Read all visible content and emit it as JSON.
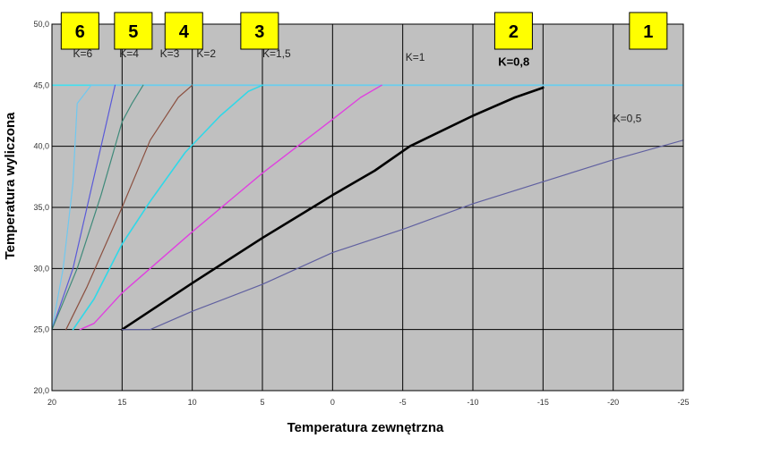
{
  "chart_data": {
    "type": "line",
    "xlabel": "Temperatura zewnętrzna",
    "ylabel": "Temperatura wyliczona",
    "xlim": [
      20,
      -25
    ],
    "ylim": [
      20,
      50
    ],
    "x_ticks": [
      20,
      15,
      10,
      5,
      0,
      -5,
      -10,
      -15,
      -20,
      -25
    ],
    "y_ticks": [
      20,
      25,
      30,
      35,
      40,
      45,
      50
    ],
    "x_tick_labels": [
      "20",
      "15",
      "10",
      "5",
      "0",
      "-5",
      "-10",
      "-15",
      "-20",
      "-25"
    ],
    "y_tick_labels": [
      "20,0",
      "25,0",
      "30,0",
      "35,0",
      "40,0",
      "45,0",
      "50,0"
    ],
    "grid": true,
    "plot_background": "#c0c0c0",
    "reference_line": {
      "y": 45,
      "color": "#40e0f0"
    },
    "series": [
      {
        "name": "K=6",
        "color": "#70c8ef",
        "width": 1.2,
        "bold": false,
        "points": [
          [
            20,
            25
          ],
          [
            19.2,
            30
          ],
          [
            18.5,
            37
          ],
          [
            18.2,
            43.5
          ],
          [
            17.2,
            45
          ],
          [
            -25,
            45
          ]
        ]
      },
      {
        "name": "K=4",
        "color": "#5a5ad8",
        "width": 1.2,
        "bold": false,
        "points": [
          [
            20,
            25
          ],
          [
            18.5,
            30
          ],
          [
            17.3,
            36
          ],
          [
            16.3,
            41
          ],
          [
            15.5,
            45
          ]
        ]
      },
      {
        "name": "K=3",
        "color": "#3f8a7a",
        "width": 1.2,
        "bold": false,
        "points": [
          [
            20,
            25
          ],
          [
            18.2,
            30
          ],
          [
            16.5,
            36
          ],
          [
            15,
            42
          ],
          [
            14.3,
            43.5
          ],
          [
            13.5,
            45
          ]
        ]
      },
      {
        "name": "K=2",
        "color": "#8b5040",
        "width": 1.2,
        "bold": false,
        "points": [
          [
            19,
            25
          ],
          [
            17.5,
            28.5
          ],
          [
            15,
            35
          ],
          [
            13,
            40.5
          ],
          [
            11,
            44
          ],
          [
            10,
            45
          ]
        ]
      },
      {
        "name": "K=1,5",
        "color": "#30d8e8",
        "width": 1.6,
        "bold": false,
        "points": [
          [
            18.5,
            25
          ],
          [
            17,
            27.5
          ],
          [
            15,
            32
          ],
          [
            13,
            35.5
          ],
          [
            10.5,
            39.5
          ],
          [
            8,
            42.5
          ],
          [
            6,
            44.5
          ],
          [
            5,
            45
          ]
        ]
      },
      {
        "name": "K=1",
        "color": "#e040e0",
        "width": 1.4,
        "bold": false,
        "points": [
          [
            18,
            25
          ],
          [
            17,
            25.5
          ],
          [
            15,
            28
          ],
          [
            10,
            33
          ],
          [
            5,
            37.8
          ],
          [
            0,
            42.2
          ],
          [
            -2,
            44
          ],
          [
            -3.5,
            45
          ]
        ]
      },
      {
        "name": "K=0,8",
        "color": "#000000",
        "width": 2.6,
        "bold": true,
        "points": [
          [
            15,
            25
          ],
          [
            10,
            28.8
          ],
          [
            5,
            32.5
          ],
          [
            2,
            34.6
          ],
          [
            0,
            36
          ],
          [
            -3,
            38
          ],
          [
            -5.5,
            40
          ],
          [
            -10,
            42.5
          ],
          [
            -13,
            44
          ],
          [
            -15,
            44.8
          ]
        ]
      },
      {
        "name": "K=0,5",
        "color": "#6060a0",
        "width": 1.2,
        "bold": false,
        "points": [
          [
            15,
            25
          ],
          [
            13,
            25
          ],
          [
            10,
            26.5
          ],
          [
            5,
            28.7
          ],
          [
            0,
            31.3
          ],
          [
            -5,
            33.2
          ],
          [
            -10,
            35.3
          ],
          [
            -15,
            37.1
          ],
          [
            -20,
            38.9
          ],
          [
            -25,
            40.5
          ]
        ]
      }
    ],
    "curve_labels": [
      {
        "text": "K=6",
        "x": 18.5,
        "y": 47.3
      },
      {
        "text": "K=4",
        "x": 15.2,
        "y": 47.3
      },
      {
        "text": "K=3",
        "x": 12.3,
        "y": 47.3
      },
      {
        "text": "K=2",
        "x": 9.7,
        "y": 47.3
      },
      {
        "text": "K=1,5",
        "x": 5.0,
        "y": 47.3
      },
      {
        "text": "K=1",
        "x": -5.2,
        "y": 47.0
      },
      {
        "text": "K=0,8",
        "x": -11.8,
        "y": 46.6
      },
      {
        "text": "K=0,5",
        "x": -20.0,
        "y": 42.0
      }
    ],
    "boxes": [
      {
        "label": "6",
        "x_center": 18.0
      },
      {
        "label": "5",
        "x_center": 14.2
      },
      {
        "label": "4",
        "x_center": 10.6
      },
      {
        "label": "3",
        "x_center": 5.2
      },
      {
        "label": "2",
        "x_center": -12.9
      },
      {
        "label": "1",
        "x_center": -22.5
      }
    ]
  }
}
